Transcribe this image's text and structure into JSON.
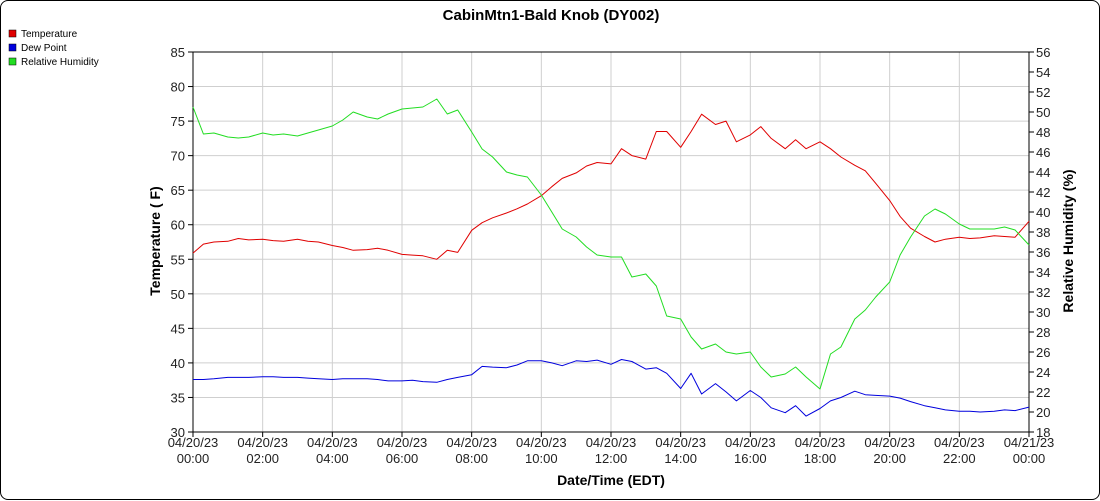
{
  "chart_data": {
    "type": "line",
    "title": "CabinMtn1-Bald Knob (DY002)",
    "xlabel": "Date/Time (EDT)",
    "ylabel": "Temperature ( F)",
    "y2label": "Relative Humidity (%)",
    "xlim_hours": [
      0,
      24
    ],
    "ylim": [
      30,
      85
    ],
    "y2lim": [
      18,
      56
    ],
    "yticks": [
      30,
      35,
      40,
      45,
      50,
      55,
      60,
      65,
      70,
      75,
      80,
      85
    ],
    "y2ticks": [
      18,
      20,
      22,
      24,
      26,
      28,
      30,
      32,
      34,
      36,
      38,
      40,
      42,
      44,
      46,
      48,
      50,
      52,
      54,
      56
    ],
    "xticks": [
      {
        "hour": 0,
        "date": "04/20/23",
        "time": "00:00"
      },
      {
        "hour": 2,
        "date": "04/20/23",
        "time": "02:00"
      },
      {
        "hour": 4,
        "date": "04/20/23",
        "time": "04:00"
      },
      {
        "hour": 6,
        "date": "04/20/23",
        "time": "06:00"
      },
      {
        "hour": 8,
        "date": "04/20/23",
        "time": "08:00"
      },
      {
        "hour": 10,
        "date": "04/20/23",
        "time": "10:00"
      },
      {
        "hour": 12,
        "date": "04/20/23",
        "time": "12:00"
      },
      {
        "hour": 14,
        "date": "04/20/23",
        "time": "14:00"
      },
      {
        "hour": 16,
        "date": "04/20/23",
        "time": "16:00"
      },
      {
        "hour": 18,
        "date": "04/20/23",
        "time": "18:00"
      },
      {
        "hour": 20,
        "date": "04/20/23",
        "time": "20:00"
      },
      {
        "hour": 22,
        "date": "04/20/23",
        "time": "22:00"
      },
      {
        "hour": 24,
        "date": "04/21/23",
        "time": "00:00"
      }
    ],
    "grid": true,
    "legend_position": "top-left",
    "series": [
      {
        "name": "Temperature",
        "color": "#e00000",
        "axis": "left",
        "x": [
          0,
          0.3,
          0.6,
          1.0,
          1.3,
          1.6,
          2.0,
          2.3,
          2.6,
          3.0,
          3.3,
          3.6,
          4.0,
          4.3,
          4.6,
          5.0,
          5.3,
          5.6,
          6.0,
          6.3,
          6.6,
          7.0,
          7.3,
          7.6,
          8.0,
          8.3,
          8.6,
          9.0,
          9.3,
          9.6,
          10.0,
          10.3,
          10.6,
          11.0,
          11.3,
          11.6,
          12.0,
          12.3,
          12.6,
          13.0,
          13.3,
          13.6,
          14.0,
          14.3,
          14.6,
          15.0,
          15.3,
          15.6,
          16.0,
          16.3,
          16.6,
          17.0,
          17.3,
          17.6,
          18.0,
          18.3,
          18.6,
          19.0,
          19.3,
          19.6,
          20.0,
          20.3,
          20.6,
          21.0,
          21.3,
          21.6,
          22.0,
          22.3,
          22.6,
          23.0,
          23.3,
          23.6,
          24.0
        ],
        "values": [
          55.9,
          57.2,
          57.5,
          57.6,
          58.0,
          57.8,
          57.9,
          57.7,
          57.6,
          57.9,
          57.6,
          57.5,
          57.0,
          56.7,
          56.3,
          56.4,
          56.6,
          56.3,
          55.7,
          55.6,
          55.5,
          55.0,
          56.3,
          56.0,
          59.2,
          60.3,
          61.0,
          61.7,
          62.3,
          63.0,
          64.2,
          65.5,
          66.7,
          67.5,
          68.5,
          69.0,
          68.8,
          71.0,
          70.0,
          69.5,
          73.5,
          73.5,
          71.2,
          73.5,
          76.0,
          74.5,
          75.0,
          72.0,
          73.0,
          74.2,
          72.5,
          71.0,
          72.3,
          71.0,
          72.0,
          71.0,
          69.8,
          68.6,
          67.8,
          66.0,
          63.5,
          61.2,
          59.5,
          58.3,
          57.5,
          57.9,
          58.2,
          58.0,
          58.1,
          58.4,
          58.3,
          58.2,
          60.5
        ]
      },
      {
        "name": "Dew Point",
        "color": "#0000dd",
        "axis": "left",
        "x": [
          0,
          0.3,
          0.6,
          1.0,
          1.3,
          1.6,
          2.0,
          2.3,
          2.6,
          3.0,
          3.3,
          3.6,
          4.0,
          4.3,
          4.6,
          5.0,
          5.3,
          5.6,
          6.0,
          6.3,
          6.6,
          7.0,
          7.3,
          7.6,
          8.0,
          8.3,
          8.6,
          9.0,
          9.3,
          9.6,
          10.0,
          10.3,
          10.6,
          11.0,
          11.3,
          11.6,
          12.0,
          12.3,
          12.6,
          13.0,
          13.3,
          13.6,
          14.0,
          14.3,
          14.6,
          15.0,
          15.3,
          15.6,
          16.0,
          16.3,
          16.6,
          17.0,
          17.3,
          17.6,
          18.0,
          18.3,
          18.6,
          19.0,
          19.3,
          19.6,
          20.0,
          20.3,
          20.6,
          21.0,
          21.3,
          21.6,
          22.0,
          22.3,
          22.6,
          23.0,
          23.3,
          23.6,
          24.0
        ],
        "values": [
          37.6,
          37.6,
          37.7,
          37.9,
          37.9,
          37.9,
          38.0,
          38.0,
          37.9,
          37.9,
          37.8,
          37.7,
          37.6,
          37.7,
          37.7,
          37.7,
          37.6,
          37.4,
          37.4,
          37.5,
          37.3,
          37.2,
          37.6,
          37.9,
          38.3,
          39.5,
          39.4,
          39.3,
          39.7,
          40.3,
          40.3,
          40.0,
          39.6,
          40.3,
          40.2,
          40.4,
          39.8,
          40.5,
          40.2,
          39.1,
          39.3,
          38.5,
          36.3,
          38.5,
          35.5,
          37.0,
          35.8,
          34.5,
          36.0,
          35.0,
          33.5,
          32.8,
          33.8,
          32.3,
          33.4,
          34.5,
          35.0,
          35.9,
          35.4,
          35.3,
          35.2,
          34.9,
          34.4,
          33.8,
          33.5,
          33.2,
          33.0,
          33.0,
          32.9,
          33.0,
          33.2,
          33.1,
          33.6
        ]
      },
      {
        "name": "Relative Humidity",
        "color": "#22dd22",
        "axis": "right",
        "x": [
          0,
          0.3,
          0.6,
          1.0,
          1.3,
          1.6,
          2.0,
          2.3,
          2.6,
          3.0,
          3.3,
          3.6,
          4.0,
          4.3,
          4.6,
          5.0,
          5.3,
          5.6,
          6.0,
          6.3,
          6.6,
          7.0,
          7.3,
          7.6,
          8.0,
          8.3,
          8.6,
          9.0,
          9.3,
          9.6,
          10.0,
          10.3,
          10.6,
          11.0,
          11.3,
          11.6,
          12.0,
          12.3,
          12.6,
          13.0,
          13.3,
          13.6,
          14.0,
          14.3,
          14.6,
          15.0,
          15.3,
          15.6,
          16.0,
          16.3,
          16.6,
          17.0,
          17.3,
          17.6,
          18.0,
          18.3,
          18.6,
          19.0,
          19.3,
          19.6,
          20.0,
          20.3,
          20.6,
          21.0,
          21.3,
          21.6,
          22.0,
          22.3,
          22.6,
          23.0,
          23.3,
          23.6,
          24.0
        ],
        "values": [
          50.5,
          47.8,
          47.9,
          47.5,
          47.4,
          47.5,
          47.9,
          47.7,
          47.8,
          47.6,
          47.9,
          48.2,
          48.6,
          49.2,
          50.0,
          49.5,
          49.3,
          49.8,
          50.3,
          50.4,
          50.5,
          51.3,
          49.8,
          50.2,
          48.0,
          46.3,
          45.5,
          44.0,
          43.7,
          43.5,
          41.7,
          40.0,
          38.3,
          37.5,
          36.5,
          35.7,
          35.5,
          35.5,
          33.5,
          33.8,
          32.6,
          29.6,
          29.3,
          27.5,
          26.3,
          26.8,
          26.0,
          25.8,
          26.0,
          24.5,
          23.5,
          23.8,
          24.5,
          23.5,
          22.3,
          25.8,
          26.5,
          29.3,
          30.2,
          31.5,
          33.0,
          35.7,
          37.5,
          39.6,
          40.3,
          39.8,
          38.8,
          38.3,
          38.3,
          38.3,
          38.5,
          38.2,
          36.7
        ]
      }
    ]
  }
}
